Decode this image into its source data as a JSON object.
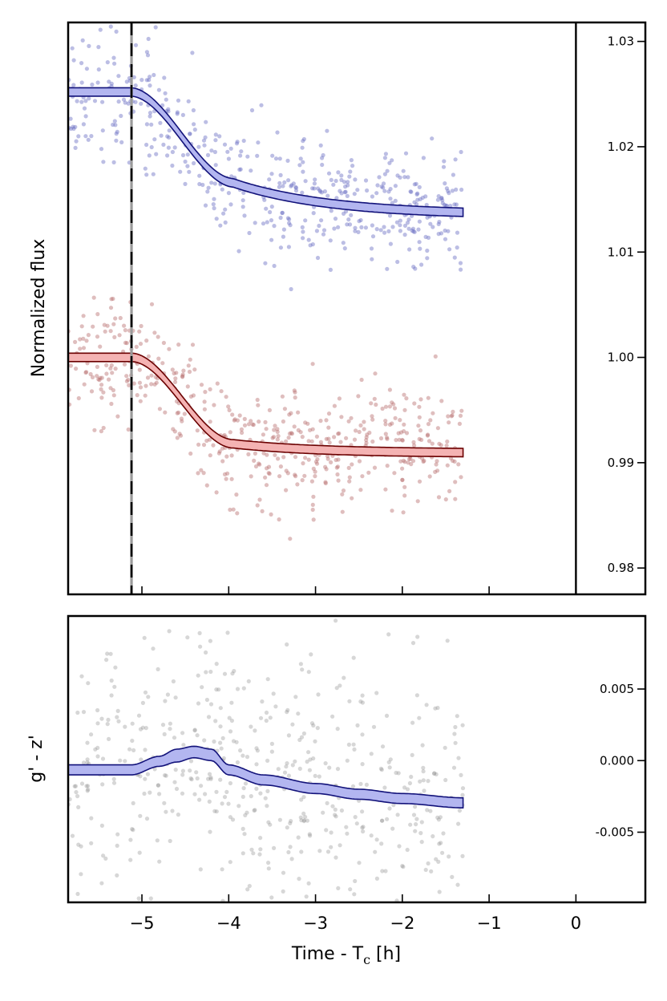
{
  "chart_data": [
    {
      "type": "scatter",
      "panel": "top",
      "ylabel": "Normalized flux",
      "xlim": [
        -5.85,
        0.8
      ],
      "ylim": [
        0.9775,
        1.0318
      ],
      "yticks": [
        0.98,
        0.99,
        1.0,
        1.01,
        1.02,
        1.03
      ],
      "ytick_labels": [
        "0.98",
        "0.99",
        "1.00",
        "1.01",
        "1.02",
        "1.03"
      ],
      "yticks_side": "right",
      "xticks": [
        -5,
        -4,
        -3,
        -2,
        -1,
        0
      ],
      "xtick_labels": [
        "",
        "",
        "",
        "",
        "",
        ""
      ],
      "vertical_lines": [
        {
          "x": -5.12,
          "style": "dashed",
          "color": "#000000"
        },
        {
          "x": 0.0,
          "style": "solid",
          "color": "#000000"
        }
      ],
      "series": [
        {
          "color": "#6a6fc4",
          "point_alpha": 0.45,
          "x_range": [
            -5.85,
            -1.3
          ],
          "n_points": 520,
          "noise_sigma": 0.0028,
          "model": {
            "color": "#12127a",
            "fill": "#b3b6f0",
            "baseline": 1.0252,
            "depth": 0.0117,
            "ingress_start": -5.12,
            "ingress_end": -3.95,
            "tail_tau": 1.1,
            "tail_fraction": 0.32,
            "band_halfwidth": 0.0004
          }
        },
        {
          "color": "#b76e6e",
          "point_alpha": 0.45,
          "x_range": [
            -5.85,
            -1.3
          ],
          "n_points": 520,
          "noise_sigma": 0.0028,
          "model": {
            "color": "#6b0000",
            "fill": "#f4b3b3",
            "baseline": 1.0,
            "depth": 0.0091,
            "ingress_start": -5.12,
            "ingress_end": -3.95,
            "tail_tau": 1.0,
            "tail_fraction": 0.12,
            "band_halfwidth": 0.0004
          }
        }
      ]
    },
    {
      "type": "scatter",
      "panel": "bottom",
      "ylabel": "g' - z'",
      "xlabel": "Time - T",
      "xlabel_subscript": "c",
      "xlabel_suffix": " [h]",
      "xlim": [
        -5.85,
        0.8
      ],
      "ylim": [
        -0.0099,
        0.0101
      ],
      "yticks": [
        -0.005,
        0.0,
        0.005
      ],
      "ytick_labels": [
        "-0.005",
        "0.000",
        "0.005"
      ],
      "yticks_side": "right",
      "xticks": [
        -5,
        -4,
        -3,
        -2,
        -1,
        0
      ],
      "xtick_labels": [
        "−5",
        "−4",
        "−3",
        "−2",
        "−1",
        "0"
      ],
      "series": [
        {
          "color": "#8c8c8c",
          "point_alpha": 0.35,
          "x_range": [
            -5.85,
            -1.3
          ],
          "n_points": 520,
          "noise_sigma": 0.0042,
          "model": {
            "color": "#12127a",
            "fill": "#b3b6f0",
            "upper": [
              [
                -5.85,
                -0.0003
              ],
              [
                -5.12,
                -0.0003
              ],
              [
                -4.8,
                0.0003
              ],
              [
                -4.6,
                0.0008
              ],
              [
                -4.4,
                0.001
              ],
              [
                -4.2,
                0.0008
              ],
              [
                -4.0,
                -0.0003
              ],
              [
                -3.6,
                -0.001
              ],
              [
                -3.0,
                -0.0016
              ],
              [
                -2.5,
                -0.002
              ],
              [
                -2.0,
                -0.0023
              ],
              [
                -1.3,
                -0.0026
              ]
            ],
            "lower": [
              [
                -5.85,
                -0.001
              ],
              [
                -5.12,
                -0.001
              ],
              [
                -4.8,
                -0.0004
              ],
              [
                -4.6,
                -0.0001
              ],
              [
                -4.4,
                0.0002
              ],
              [
                -4.2,
                0.0
              ],
              [
                -4.0,
                -0.001
              ],
              [
                -3.6,
                -0.0017
              ],
              [
                -3.0,
                -0.0023
              ],
              [
                -2.5,
                -0.0027
              ],
              [
                -2.0,
                -0.003
              ],
              [
                -1.3,
                -0.0033
              ]
            ]
          }
        }
      ]
    }
  ]
}
